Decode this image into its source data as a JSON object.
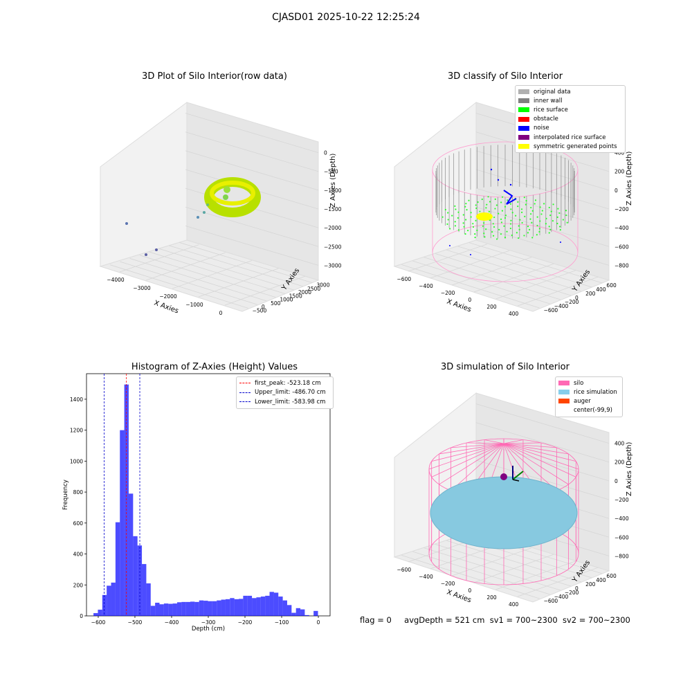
{
  "suptitle": "CJASD01 2025-10-22 12:25:24",
  "panels": {
    "raw": {
      "title": "3D Plot of Silo Interior(row data)",
      "xlabel": "X Axies",
      "ylabel": "Y Axies",
      "zlabel": "Z Axies (Depth)",
      "xticks": [
        "−4000",
        "−3000",
        "−2000",
        "−1000",
        "0"
      ],
      "yticks": [
        "−500",
        "0",
        "500",
        "1000",
        "1500",
        "2000",
        "2500",
        "3000"
      ],
      "zticks": [
        "0",
        "−500",
        "−1000",
        "−1500",
        "−2000",
        "−2500",
        "−3000"
      ]
    },
    "classify": {
      "title": "3D classify of Silo Interior",
      "xlabel": "X Axies",
      "ylabel": "Y Axies",
      "zlabel": "Z Axies (Depth)",
      "xticks": [
        "−600",
        "−400",
        "−200",
        "0",
        "200",
        "400"
      ],
      "yticks": [
        "−600",
        "−400",
        "−200",
        "0",
        "200",
        "400",
        "600"
      ],
      "zticks": [
        "400",
        "200",
        "0",
        "−200",
        "−400",
        "−600",
        "−800"
      ],
      "legend": [
        {
          "label": "original data",
          "color": "#b0b0b0"
        },
        {
          "label": "inner wall",
          "color": "#808080"
        },
        {
          "label": "rice surface",
          "color": "#00ff00"
        },
        {
          "label": "obstacle",
          "color": "#ff0000"
        },
        {
          "label": "noise",
          "color": "#0000ff"
        },
        {
          "label": "interpolated rice surface",
          "color": "#800080"
        },
        {
          "label": "symmetric generated points",
          "color": "#ffff00"
        }
      ]
    },
    "simulation": {
      "title": "3D simulation of Silo Interior",
      "xlabel": "X Axies",
      "ylabel": "Y Axies",
      "zlabel": "Z Axies (Depth)",
      "xticks": [
        "−600",
        "−400",
        "−200",
        "0",
        "200",
        "400"
      ],
      "yticks": [
        "−600",
        "−400",
        "−200",
        "0",
        "200",
        "400",
        "600"
      ],
      "zticks": [
        "400",
        "200",
        "0",
        "−200",
        "−400",
        "−600",
        "−800"
      ],
      "legend": [
        {
          "label": "silo",
          "color": "#ff69b4"
        },
        {
          "label": "rice simulation",
          "color": "#87ceeb"
        },
        {
          "label": "auger",
          "color": "#ff4500"
        },
        {
          "label": "center(-99,9)",
          "color": ""
        }
      ]
    }
  },
  "chart_data": {
    "type": "bar",
    "title": "Histogram of Z-Axies (Height) Values",
    "xlabel": "Depth (cm)",
    "ylabel": "Frequency",
    "xlim": [
      -632,
      32
    ],
    "ylim": [
      0,
      1565
    ],
    "xticks": [
      -600,
      -500,
      -400,
      -300,
      -200,
      -100,
      0
    ],
    "yticks": [
      0,
      200,
      400,
      600,
      800,
      1000,
      1200,
      1400
    ],
    "bar_color": "#0000ff",
    "bins": [
      {
        "x0": -613,
        "x1": -601,
        "count": 18
      },
      {
        "x0": -601,
        "x1": -589,
        "count": 40
      },
      {
        "x0": -589,
        "x1": -577,
        "count": 135
      },
      {
        "x0": -577,
        "x1": -565,
        "count": 195
      },
      {
        "x0": -565,
        "x1": -553,
        "count": 215
      },
      {
        "x0": -553,
        "x1": -541,
        "count": 605
      },
      {
        "x0": -541,
        "x1": -529,
        "count": 1200
      },
      {
        "x0": -529,
        "x1": -517,
        "count": 1495
      },
      {
        "x0": -517,
        "x1": -505,
        "count": 790
      },
      {
        "x0": -505,
        "x1": -493,
        "count": 515
      },
      {
        "x0": -493,
        "x1": -481,
        "count": 455
      },
      {
        "x0": -481,
        "x1": -469,
        "count": 335
      },
      {
        "x0": -469,
        "x1": -457,
        "count": 210
      },
      {
        "x0": -457,
        "x1": -445,
        "count": 65
      },
      {
        "x0": -445,
        "x1": -433,
        "count": 85
      },
      {
        "x0": -433,
        "x1": -421,
        "count": 75
      },
      {
        "x0": -421,
        "x1": -409,
        "count": 80
      },
      {
        "x0": -409,
        "x1": -397,
        "count": 78
      },
      {
        "x0": -397,
        "x1": -385,
        "count": 80
      },
      {
        "x0": -385,
        "x1": -373,
        "count": 88
      },
      {
        "x0": -373,
        "x1": -361,
        "count": 90
      },
      {
        "x0": -361,
        "x1": -349,
        "count": 90
      },
      {
        "x0": -349,
        "x1": -337,
        "count": 92
      },
      {
        "x0": -337,
        "x1": -325,
        "count": 90
      },
      {
        "x0": -325,
        "x1": -313,
        "count": 100
      },
      {
        "x0": -313,
        "x1": -301,
        "count": 98
      },
      {
        "x0": -301,
        "x1": -289,
        "count": 95
      },
      {
        "x0": -289,
        "x1": -277,
        "count": 95
      },
      {
        "x0": -277,
        "x1": -265,
        "count": 100
      },
      {
        "x0": -265,
        "x1": -253,
        "count": 105
      },
      {
        "x0": -253,
        "x1": -241,
        "count": 108
      },
      {
        "x0": -241,
        "x1": -229,
        "count": 115
      },
      {
        "x0": -229,
        "x1": -217,
        "count": 108
      },
      {
        "x0": -217,
        "x1": -205,
        "count": 110
      },
      {
        "x0": -205,
        "x1": -193,
        "count": 130
      },
      {
        "x0": -193,
        "x1": -181,
        "count": 130
      },
      {
        "x0": -181,
        "x1": -169,
        "count": 115
      },
      {
        "x0": -169,
        "x1": -157,
        "count": 120
      },
      {
        "x0": -157,
        "x1": -145,
        "count": 125
      },
      {
        "x0": -145,
        "x1": -133,
        "count": 130
      },
      {
        "x0": -133,
        "x1": -121,
        "count": 155
      },
      {
        "x0": -121,
        "x1": -109,
        "count": 150
      },
      {
        "x0": -109,
        "x1": -97,
        "count": 125
      },
      {
        "x0": -97,
        "x1": -85,
        "count": 100
      },
      {
        "x0": -85,
        "x1": -73,
        "count": 70
      },
      {
        "x0": -73,
        "x1": -61,
        "count": 20
      },
      {
        "x0": -61,
        "x1": -49,
        "count": 50
      },
      {
        "x0": -49,
        "x1": -37,
        "count": 42
      },
      {
        "x0": -37,
        "x1": -25,
        "count": 5
      },
      {
        "x0": -13,
        "x1": -1,
        "count": 32
      }
    ],
    "vlines": [
      {
        "label": "first_peak: -523.18 cm",
        "value": -523.18,
        "color": "#ff0000"
      },
      {
        "label": "Upper_limit: -486.70 cm",
        "value": -486.7,
        "color": "#0000cc"
      },
      {
        "label": "Lower_limit: -583.98 cm",
        "value": -583.98,
        "color": "#0000cc"
      }
    ],
    "legend_position": "upper right"
  },
  "footer": {
    "flag": "flag = 0",
    "avg": "avgDepth = 521 cm",
    "sv1": "sv1 = 700~2300",
    "sv2": "sv2 = 700~2300"
  }
}
